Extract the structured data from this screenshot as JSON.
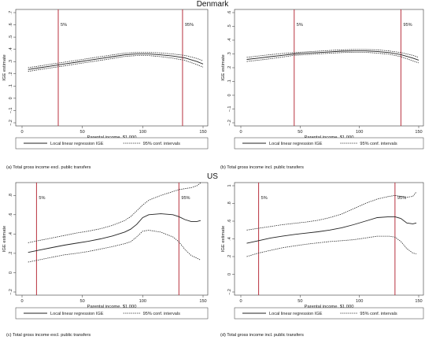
{
  "section_titles": {
    "top": "Denmark",
    "bottom": "US"
  },
  "chart_data": [
    {
      "id": "a",
      "type": "line",
      "panel": "top-left",
      "caption": "(a) Total gross income excl. public transfers",
      "xlabel": "Parental income, $1,000",
      "ylabel": "IGE estimate",
      "xlim": [
        0,
        150
      ],
      "ylim": [
        -0.2,
        0.7
      ],
      "xticks": [
        0,
        50,
        100,
        150
      ],
      "xtick_labels": [
        "0",
        "50",
        "100",
        "150"
      ],
      "yticks": [
        -0.2,
        -0.1,
        0,
        0.1,
        0.2,
        0.3,
        0.4,
        0.5,
        0.6,
        0.7
      ],
      "ytick_labels": [
        "−.2",
        "−.1",
        "0",
        ".1",
        ".2",
        ".3",
        ".4",
        ".5",
        ".6",
        ".7"
      ],
      "grid": false,
      "vlines": [
        {
          "x": 30,
          "label": "5%",
          "color": "#b8323f"
        },
        {
          "x": 133,
          "label": "95%",
          "color": "#b8323f"
        }
      ],
      "x": [
        5,
        15,
        25,
        35,
        45,
        55,
        65,
        75,
        85,
        95,
        105,
        115,
        125,
        135,
        145,
        150
      ],
      "series": [
        {
          "name": "Local linear regression IGE",
          "style": "solid",
          "values": [
            0.235,
            0.25,
            0.265,
            0.28,
            0.295,
            0.31,
            0.325,
            0.34,
            0.355,
            0.362,
            0.362,
            0.355,
            0.345,
            0.33,
            0.3,
            0.28
          ]
        },
        {
          "name": "95% conf. intervals",
          "style": "dotted",
          "values": [
            0.25,
            0.265,
            0.28,
            0.295,
            0.31,
            0.325,
            0.34,
            0.355,
            0.368,
            0.375,
            0.375,
            0.37,
            0.362,
            0.35,
            0.325,
            0.305
          ]
        },
        {
          "name": "",
          "style": "dotted",
          "values": [
            0.22,
            0.235,
            0.25,
            0.265,
            0.28,
            0.295,
            0.31,
            0.325,
            0.342,
            0.349,
            0.349,
            0.34,
            0.328,
            0.31,
            0.275,
            0.255
          ]
        }
      ]
    },
    {
      "id": "b",
      "type": "line",
      "panel": "top-right",
      "caption": "(b) Total gross income incl. public transfers",
      "xlabel": "Parental income, $1,000",
      "ylabel": "IGE estimate",
      "xlim": [
        0,
        150
      ],
      "ylim": [
        -0.2,
        0.6
      ],
      "xticks": [
        0,
        50,
        100,
        150
      ],
      "xtick_labels": [
        "0",
        "50",
        "100",
        "150"
      ],
      "yticks": [
        -0.2,
        -0.1,
        0,
        0.1,
        0.2,
        0.3,
        0.4,
        0.5,
        0.6
      ],
      "ytick_labels": [
        "−.2",
        "−.1",
        "0",
        ".1",
        ".2",
        ".3",
        ".4",
        ".5",
        ".6"
      ],
      "grid": false,
      "vlines": [
        {
          "x": 45,
          "label": "5%",
          "color": "#b8323f"
        },
        {
          "x": 135,
          "label": "95%",
          "color": "#b8323f"
        }
      ],
      "x": [
        5,
        15,
        25,
        35,
        45,
        55,
        65,
        75,
        85,
        95,
        105,
        115,
        125,
        135,
        145,
        150
      ],
      "series": [
        {
          "name": "Local linear regression IGE",
          "style": "solid",
          "values": [
            0.26,
            0.27,
            0.28,
            0.29,
            0.3,
            0.305,
            0.31,
            0.315,
            0.32,
            0.322,
            0.322,
            0.318,
            0.31,
            0.295,
            0.27,
            0.255
          ]
        },
        {
          "name": "95% conf. intervals",
          "style": "dotted",
          "values": [
            0.275,
            0.285,
            0.295,
            0.303,
            0.31,
            0.315,
            0.32,
            0.325,
            0.33,
            0.332,
            0.332,
            0.33,
            0.322,
            0.31,
            0.29,
            0.275
          ]
        },
        {
          "name": "",
          "style": "dotted",
          "values": [
            0.245,
            0.255,
            0.265,
            0.277,
            0.29,
            0.295,
            0.3,
            0.305,
            0.31,
            0.312,
            0.312,
            0.306,
            0.298,
            0.28,
            0.25,
            0.235
          ]
        }
      ]
    },
    {
      "id": "c",
      "type": "line",
      "panel": "bottom-left",
      "caption": "(c) Total gross income excl. public transfers",
      "xlabel": "Parental income, $1,000",
      "ylabel": "IGE estimate",
      "xlim": [
        0,
        150
      ],
      "ylim": [
        -0.2,
        0.9
      ],
      "xticks": [
        0,
        50,
        100,
        150
      ],
      "xtick_labels": [
        "0",
        "50",
        "100",
        "150"
      ],
      "yticks": [
        -0.2,
        0,
        0.2,
        0.4,
        0.6,
        0.8
      ],
      "ytick_labels": [
        "−.2",
        "0",
        ".2",
        ".4",
        ".6",
        ".8"
      ],
      "grid": false,
      "vlines": [
        {
          "x": 12,
          "label": "5%",
          "color": "#b8323f"
        },
        {
          "x": 130,
          "label": "95%",
          "color": "#b8323f"
        }
      ],
      "x": [
        5,
        15,
        25,
        35,
        45,
        55,
        65,
        75,
        85,
        90,
        95,
        100,
        105,
        115,
        125,
        130,
        135,
        140,
        145,
        148
      ],
      "series": [
        {
          "name": "Local linear regression IGE",
          "style": "solid",
          "values": [
            0.21,
            0.235,
            0.26,
            0.285,
            0.305,
            0.325,
            0.35,
            0.38,
            0.42,
            0.45,
            0.5,
            0.57,
            0.6,
            0.61,
            0.6,
            0.58,
            0.55,
            0.53,
            0.53,
            0.54
          ]
        },
        {
          "name": "95% conf. intervals",
          "style": "dotted",
          "values": [
            0.31,
            0.335,
            0.36,
            0.385,
            0.41,
            0.43,
            0.455,
            0.49,
            0.54,
            0.58,
            0.64,
            0.7,
            0.75,
            0.8,
            0.84,
            0.86,
            0.87,
            0.88,
            0.9,
            0.93
          ]
        },
        {
          "name": "",
          "style": "dotted",
          "values": [
            0.11,
            0.135,
            0.16,
            0.185,
            0.2,
            0.22,
            0.245,
            0.27,
            0.3,
            0.32,
            0.37,
            0.43,
            0.44,
            0.42,
            0.37,
            0.32,
            0.24,
            0.18,
            0.15,
            0.13
          ]
        }
      ]
    },
    {
      "id": "d",
      "type": "line",
      "panel": "bottom-right",
      "caption": "(d) Total gross income incl. public transfers",
      "xlabel": "Parental income, $1,000",
      "ylabel": "IGE estimate",
      "xlim": [
        0,
        150
      ],
      "ylim": [
        -0.2,
        1.0
      ],
      "xticks": [
        0,
        50,
        100,
        150
      ],
      "xtick_labels": [
        "0",
        "50",
        "100",
        "150"
      ],
      "yticks": [
        -0.2,
        0,
        0.2,
        0.4,
        0.6,
        0.8,
        1.0
      ],
      "ytick_labels": [
        "−.2",
        "0",
        ".2",
        ".4",
        ".6",
        ".8",
        "1"
      ],
      "grid": false,
      "vlines": [
        {
          "x": 15,
          "label": "5%",
          "color": "#b8323f"
        },
        {
          "x": 130,
          "label": "95%",
          "color": "#b8323f"
        }
      ],
      "x": [
        5,
        15,
        25,
        35,
        45,
        55,
        65,
        75,
        85,
        95,
        105,
        115,
        125,
        130,
        135,
        140,
        145,
        148
      ],
      "series": [
        {
          "name": "Local linear regression IGE",
          "style": "solid",
          "values": [
            0.35,
            0.38,
            0.41,
            0.43,
            0.45,
            0.465,
            0.48,
            0.5,
            0.525,
            0.56,
            0.6,
            0.64,
            0.65,
            0.65,
            0.63,
            0.58,
            0.57,
            0.58
          ]
        },
        {
          "name": "95% conf. intervals",
          "style": "dotted",
          "values": [
            0.5,
            0.52,
            0.54,
            0.56,
            0.575,
            0.59,
            0.61,
            0.64,
            0.68,
            0.74,
            0.8,
            0.85,
            0.88,
            0.89,
            0.88,
            0.87,
            0.88,
            0.93
          ]
        },
        {
          "name": "",
          "style": "dotted",
          "values": [
            0.2,
            0.24,
            0.27,
            0.3,
            0.32,
            0.34,
            0.355,
            0.37,
            0.38,
            0.39,
            0.41,
            0.43,
            0.43,
            0.42,
            0.37,
            0.29,
            0.24,
            0.23
          ]
        }
      ]
    }
  ]
}
